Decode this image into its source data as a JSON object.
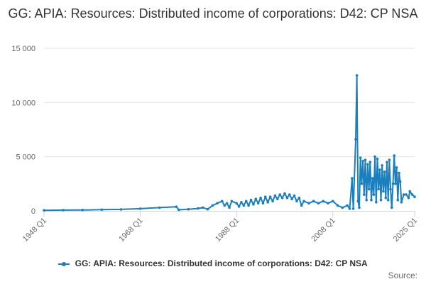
{
  "chart_data": {
    "type": "line",
    "title": "GG: APIA: Resources: Distributed income of corporations: D42: CP NSA",
    "xlabel": "",
    "ylabel": "",
    "ylim": [
      0,
      15000
    ],
    "y_ticks": [
      0,
      5000,
      10000,
      15000
    ],
    "y_tick_labels": [
      "0",
      "5 000",
      "10 000",
      "15 000"
    ],
    "x_ticks": [
      "1948 Q1",
      "1968 Q1",
      "1988 Q1",
      "2008 Q1",
      "2025 Q1"
    ],
    "x_range": [
      "1948 Q1",
      "2025 Q1"
    ],
    "grid": true,
    "legend_position": "bottom",
    "series": [
      {
        "name": "GG: APIA: Resources: Distributed income of corporations: D42: CP NSA",
        "color": "#1a7fbf",
        "points": [
          [
            "1948 Q1",
            50
          ],
          [
            "1952 Q1",
            70
          ],
          [
            "1956 Q1",
            80
          ],
          [
            "1960 Q1",
            110
          ],
          [
            "1964 Q1",
            140
          ],
          [
            "1968 Q1",
            200
          ],
          [
            "1972 Q1",
            300
          ],
          [
            "1975 Q3",
            380
          ],
          [
            "1976 Q1",
            100
          ],
          [
            "1978 Q1",
            150
          ],
          [
            "1980 Q1",
            220
          ],
          [
            "1981 Q1",
            300
          ],
          [
            "1982 Q1",
            150
          ],
          [
            "1983 Q1",
            500
          ],
          [
            "1984 Q1",
            700
          ],
          [
            "1985 Q1",
            900
          ],
          [
            "1985 Q3",
            500
          ],
          [
            "1986 Q1",
            700
          ],
          [
            "1986 Q3",
            300
          ],
          [
            "1987 Q1",
            900
          ],
          [
            "1988 Q1",
            700
          ],
          [
            "1988 Q3",
            400
          ],
          [
            "1989 Q1",
            800
          ],
          [
            "1989 Q3",
            500
          ],
          [
            "1990 Q1",
            900
          ],
          [
            "1990 Q3",
            500
          ],
          [
            "1991 Q1",
            1000
          ],
          [
            "1991 Q3",
            600
          ],
          [
            "1992 Q1",
            1100
          ],
          [
            "1992 Q3",
            700
          ],
          [
            "1993 Q1",
            1200
          ],
          [
            "1993 Q3",
            700
          ],
          [
            "1994 Q1",
            1300
          ],
          [
            "1994 Q3",
            800
          ],
          [
            "1995 Q1",
            1300
          ],
          [
            "1995 Q3",
            900
          ],
          [
            "1996 Q1",
            1400
          ],
          [
            "1996 Q3",
            1100
          ],
          [
            "1997 Q1",
            1500
          ],
          [
            "1997 Q3",
            1200
          ],
          [
            "1998 Q1",
            1600
          ],
          [
            "1998 Q3",
            1200
          ],
          [
            "1999 Q1",
            1500
          ],
          [
            "1999 Q3",
            1100
          ],
          [
            "2000 Q1",
            1400
          ],
          [
            "2000 Q3",
            900
          ],
          [
            "2001 Q1",
            1200
          ],
          [
            "2001 Q3",
            500
          ],
          [
            "2002 Q1",
            900
          ],
          [
            "2003 Q1",
            700
          ],
          [
            "2004 Q1",
            900
          ],
          [
            "2005 Q1",
            700
          ],
          [
            "2006 Q1",
            900
          ],
          [
            "2007 Q1",
            700
          ],
          [
            "2008 Q1",
            900
          ],
          [
            "2009 Q1",
            500
          ],
          [
            "2010 Q1",
            300
          ],
          [
            "2011 Q1",
            500
          ],
          [
            "2011 Q3",
            200
          ],
          [
            "2012 Q1",
            3000
          ],
          [
            "2012 Q2",
            200
          ],
          [
            "2012 Q4",
            6600
          ],
          [
            "2013 Q1",
            12500
          ],
          [
            "2013 Q2",
            900
          ],
          [
            "2013 Q3",
            300
          ],
          [
            "2013 Q4",
            4900
          ],
          [
            "2014 Q1",
            2500
          ],
          [
            "2014 Q2",
            4600
          ],
          [
            "2014 Q3",
            1500
          ],
          [
            "2014 Q4",
            4700
          ],
          [
            "2015 Q1",
            1000
          ],
          [
            "2015 Q2",
            4300
          ],
          [
            "2015 Q3",
            2000
          ],
          [
            "2015 Q4",
            4500
          ],
          [
            "2016 Q1",
            1000
          ],
          [
            "2016 Q2",
            3000
          ],
          [
            "2016 Q3",
            1500
          ],
          [
            "2016 Q4",
            5000
          ],
          [
            "2017 Q1",
            800
          ],
          [
            "2017 Q2",
            4800
          ],
          [
            "2017 Q3",
            2000
          ],
          [
            "2017 Q4",
            3800
          ],
          [
            "2018 Q1",
            1000
          ],
          [
            "2018 Q2",
            4200
          ],
          [
            "2018 Q3",
            1800
          ],
          [
            "2018 Q4",
            3600
          ],
          [
            "2019 Q1",
            1200
          ],
          [
            "2019 Q2",
            4500
          ],
          [
            "2019 Q3",
            1000
          ],
          [
            "2019 Q4",
            4700
          ],
          [
            "2020 Q1",
            2000
          ],
          [
            "2020 Q2",
            300
          ],
          [
            "2020 Q3",
            2500
          ],
          [
            "2020 Q4",
            5100
          ],
          [
            "2021 Q1",
            2500
          ],
          [
            "2021 Q2",
            4000
          ],
          [
            "2021 Q3",
            1000
          ],
          [
            "2021 Q4",
            3500
          ],
          [
            "2022 Q1",
            2700
          ],
          [
            "2022 Q2",
            800
          ],
          [
            "2022 Q4",
            1500
          ],
          [
            "2023 Q2",
            1500
          ],
          [
            "2023 Q4",
            1200
          ],
          [
            "2024 Q1",
            1800
          ],
          [
            "2024 Q3",
            1500
          ],
          [
            "2025 Q1",
            1300
          ]
        ]
      }
    ],
    "source_label": "Source:"
  }
}
